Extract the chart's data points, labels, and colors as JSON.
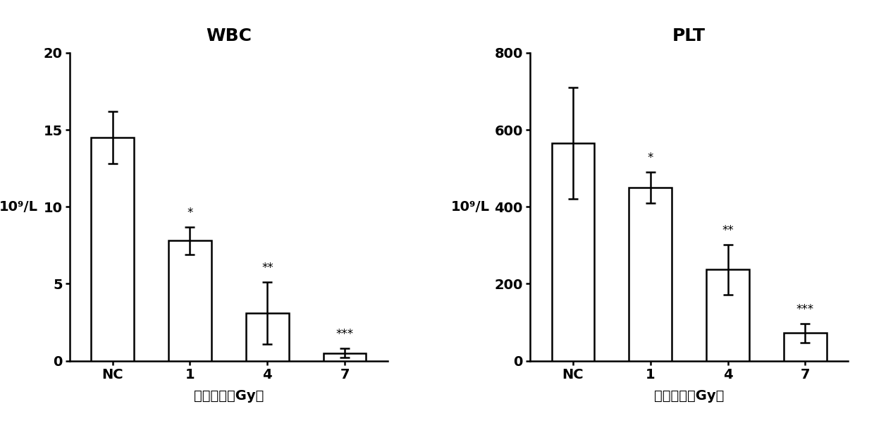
{
  "wbc": {
    "title": "WBC",
    "categories": [
      "NC",
      "1",
      "4",
      "7"
    ],
    "values": [
      14.5,
      7.8,
      3.1,
      0.5
    ],
    "errors": [
      1.7,
      0.9,
      2.0,
      0.3
    ],
    "sig_labels": [
      "",
      "*",
      "**",
      "***"
    ],
    "ylim": [
      0,
      20
    ],
    "yticks": [
      0,
      5,
      10,
      15,
      20
    ],
    "ylabel": "10⁹/L",
    "xlabel": "照射剂量（Gy）"
  },
  "plt_data": {
    "title": "PLT",
    "categories": [
      "NC",
      "1",
      "4",
      "7"
    ],
    "values": [
      565,
      450,
      237,
      72
    ],
    "errors": [
      145,
      40,
      65,
      25
    ],
    "sig_labels": [
      "",
      "*",
      "**",
      "***"
    ],
    "ylim": [
      0,
      800
    ],
    "yticks": [
      0,
      200,
      400,
      600,
      800
    ],
    "ylabel": "10⁹/L",
    "xlabel": "照射剂量（Gy）"
  },
  "bar_color": "#FFFFFF",
  "bar_edgecolor": "#000000",
  "bar_width": 0.55,
  "capsize": 5,
  "sig_fontsize": 12,
  "title_fontsize": 18,
  "label_fontsize": 14,
  "tick_fontsize": 14,
  "background_color": "#FFFFFF",
  "linewidth": 1.8
}
